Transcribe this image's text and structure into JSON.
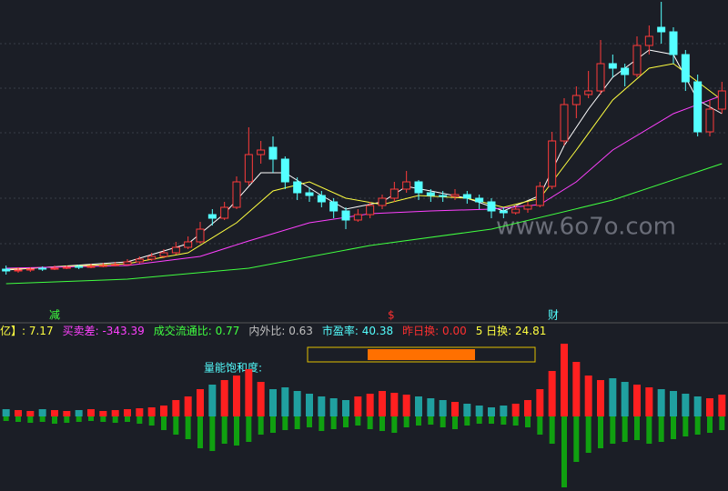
{
  "chart_data": {
    "type": "candlestick",
    "ylim": [
      0,
      340
    ],
    "candles": [
      [
        44,
        48,
        38,
        42
      ],
      [
        42,
        46,
        40,
        43
      ],
      [
        43,
        46,
        41,
        44
      ],
      [
        45,
        47,
        42,
        44
      ],
      [
        44,
        48,
        43,
        45
      ],
      [
        45,
        48,
        44,
        46
      ],
      [
        47,
        49,
        44,
        46
      ],
      [
        46,
        50,
        45,
        47
      ],
      [
        47,
        51,
        46,
        48
      ],
      [
        48,
        52,
        47,
        49
      ],
      [
        49,
        55,
        48,
        52
      ],
      [
        52,
        58,
        50,
        55
      ],
      [
        55,
        62,
        53,
        58
      ],
      [
        58,
        66,
        56,
        62
      ],
      [
        62,
        74,
        60,
        68
      ],
      [
        68,
        80,
        66,
        74
      ],
      [
        74,
        96,
        72,
        88
      ],
      [
        104,
        110,
        92,
        100
      ],
      [
        100,
        118,
        98,
        112
      ],
      [
        112,
        146,
        110,
        140
      ],
      [
        140,
        200,
        136,
        170
      ],
      [
        170,
        185,
        160,
        175
      ],
      [
        178,
        190,
        150,
        165
      ],
      [
        165,
        168,
        132,
        140
      ],
      [
        140,
        145,
        120,
        128
      ],
      [
        128,
        134,
        118,
        125
      ],
      [
        125,
        130,
        112,
        118
      ],
      [
        118,
        122,
        100,
        108
      ],
      [
        108,
        112,
        88,
        98
      ],
      [
        98,
        110,
        96,
        104
      ],
      [
        104,
        118,
        100,
        114
      ],
      [
        114,
        126,
        110,
        122
      ],
      [
        122,
        140,
        118,
        132
      ],
      [
        132,
        152,
        128,
        140
      ],
      [
        140,
        142,
        120,
        128
      ],
      [
        128,
        132,
        118,
        125
      ],
      [
        125,
        130,
        118,
        124
      ],
      [
        124,
        132,
        120,
        126
      ],
      [
        126,
        130,
        116,
        122
      ],
      [
        122,
        126,
        110,
        118
      ],
      [
        118,
        122,
        100,
        108
      ],
      [
        108,
        112,
        100,
        106
      ],
      [
        106,
        114,
        104,
        110
      ],
      [
        110,
        118,
        106,
        114
      ],
      [
        114,
        140,
        112,
        135
      ],
      [
        135,
        195,
        132,
        185
      ],
      [
        185,
        232,
        180,
        225
      ],
      [
        225,
        245,
        210,
        235
      ],
      [
        236,
        262,
        232,
        240
      ],
      [
        240,
        296,
        236,
        270
      ],
      [
        270,
        280,
        255,
        265
      ],
      [
        265,
        270,
        245,
        258
      ],
      [
        258,
        300,
        255,
        290
      ],
      [
        290,
        312,
        280,
        300
      ],
      [
        310,
        338,
        292,
        305
      ],
      [
        305,
        310,
        270,
        280
      ],
      [
        280,
        285,
        240,
        250
      ],
      [
        250,
        258,
        190,
        195
      ],
      [
        195,
        230,
        190,
        220
      ],
      [
        220,
        250,
        215,
        240
      ]
    ],
    "lines": [
      {
        "color": "#ffffff",
        "x": [
          0,
          10,
          15,
          18,
          21,
          23,
          26,
          28,
          31,
          33,
          35,
          38,
          41,
          44,
          46,
          48,
          50,
          53,
          55,
          57,
          59
        ],
        "values": [
          43,
          52,
          72,
          105,
          150,
          150,
          125,
          110,
          118,
          135,
          130,
          122,
          108,
          125,
          180,
          220,
          255,
          285,
          280,
          230,
          215
        ]
      },
      {
        "color": "#ffff40",
        "x": [
          0,
          10,
          15,
          19,
          22,
          25,
          28,
          31,
          34,
          38,
          41,
          44,
          47,
          50,
          53,
          55,
          57,
          59
        ],
        "values": [
          44,
          50,
          62,
          95,
          130,
          140,
          122,
          115,
          125,
          122,
          112,
          122,
          175,
          230,
          265,
          270,
          250,
          230
        ]
      },
      {
        "color": "#ff40ff",
        "x": [
          0,
          10,
          16,
          20,
          25,
          30,
          35,
          40,
          44,
          47,
          50,
          55,
          59
        ],
        "values": [
          45,
          48,
          58,
          75,
          95,
          105,
          108,
          110,
          115,
          140,
          175,
          215,
          235
        ]
      },
      {
        "color": "#40ff40",
        "x": [
          0,
          10,
          20,
          30,
          40,
          50,
          59
        ],
        "values": [
          28,
          33,
          45,
          70,
          88,
          120,
          160
        ]
      }
    ],
    "volume_ylim": [
      -80,
      80
    ],
    "volume_up": [
      8,
      7,
      6,
      8,
      7,
      6,
      7,
      8,
      6,
      7,
      8,
      9,
      10,
      12,
      18,
      22,
      30,
      35,
      40,
      45,
      52,
      38,
      30,
      32,
      28,
      25,
      22,
      20,
      18,
      22,
      25,
      28,
      26,
      24,
      22,
      20,
      18,
      16,
      14,
      12,
      10,
      12,
      14,
      18,
      30,
      50,
      80,
      60,
      45,
      40,
      42,
      38,
      35,
      32,
      30,
      28,
      25,
      22,
      20,
      24
    ],
    "volume_down": [
      -5,
      -6,
      -7,
      -6,
      -8,
      -7,
      -6,
      -5,
      -6,
      -7,
      -6,
      -8,
      -10,
      -15,
      -20,
      -25,
      -35,
      -38,
      -30,
      -32,
      -28,
      -20,
      -18,
      -15,
      -14,
      -12,
      -16,
      -14,
      -12,
      -10,
      -14,
      -16,
      -18,
      -12,
      -10,
      -9,
      -12,
      -14,
      -10,
      -8,
      -8,
      -9,
      -10,
      -12,
      -20,
      -30,
      -78,
      -50,
      -40,
      -35,
      -30,
      -28,
      -26,
      -30,
      -28,
      -25,
      -22,
      -20,
      -18,
      -15
    ]
  },
  "markers": [
    "减",
    "$",
    "财"
  ],
  "watermark": "www.6o7o.com",
  "info": [
    {
      "label": "亿】: ",
      "value": "7.17"
    },
    {
      "label": "买卖差: ",
      "value": "-343.39"
    },
    {
      "label": "成交流通比: ",
      "value": "0.77"
    },
    {
      "label": "内外比: ",
      "value": "0.63"
    },
    {
      "label": "市盈率: ",
      "value": "40.38"
    },
    {
      "label": "昨日换: ",
      "value": "0.00"
    },
    {
      "label": "5 日换: ",
      "value": "24.81"
    }
  ],
  "saturation_label": "量能饱和度:"
}
